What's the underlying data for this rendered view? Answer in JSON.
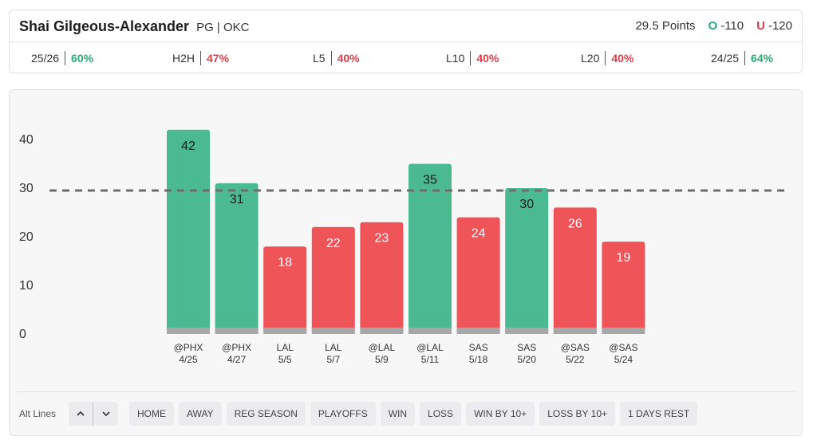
{
  "player": {
    "name": "Shai Gilgeous-Alexander",
    "meta": "PG | OKC"
  },
  "line": {
    "points": "29.5 Points",
    "over_letter": "O",
    "over_odds": "-110",
    "under_letter": "U",
    "under_odds": "-120"
  },
  "stats": [
    {
      "label": "25/26",
      "value": "60%",
      "status": "green"
    },
    {
      "label": "H2H",
      "value": "47%",
      "status": "red"
    },
    {
      "label": "L5",
      "value": "40%",
      "status": "red"
    },
    {
      "label": "L10",
      "value": "40%",
      "status": "red"
    },
    {
      "label": "L20",
      "value": "40%",
      "status": "red"
    },
    {
      "label": "24/25",
      "value": "64%",
      "status": "green"
    }
  ],
  "colors": {
    "over": "#4bba93",
    "under": "#ef5459",
    "base": "#a7a7a9",
    "dash": "#6e6e6e",
    "green_text": "#2aa876",
    "red_text": "#e23c4b"
  },
  "chart_data": {
    "type": "bar",
    "categories": [
      "@PHX 4/25",
      "@PHX 4/27",
      "LAL 5/5",
      "LAL 5/7",
      "@LAL 5/9",
      "@LAL 5/11",
      "SAS 5/18",
      "SAS 5/20",
      "@SAS 5/22",
      "@SAS 5/24"
    ],
    "opponents": [
      "@PHX",
      "@PHX",
      "LAL",
      "LAL",
      "@LAL",
      "@LAL",
      "SAS",
      "SAS",
      "@SAS",
      "@SAS"
    ],
    "dates": [
      "4/25",
      "4/27",
      "5/5",
      "5/7",
      "5/9",
      "5/11",
      "5/18",
      "5/20",
      "5/22",
      "5/24"
    ],
    "values": [
      42,
      31,
      18,
      22,
      23,
      35,
      24,
      30,
      26,
      19
    ],
    "line": 29.5,
    "yticks": [
      0,
      10,
      20,
      30,
      40
    ],
    "ylim": [
      0,
      43
    ],
    "grid": false
  },
  "footer": {
    "alt_lines_label": "Alt Lines",
    "up_icon": "chevron-up-icon",
    "down_icon": "chevron-down-icon",
    "filters": [
      "HOME",
      "AWAY",
      "REG SEASON",
      "PLAYOFFS",
      "WIN",
      "LOSS",
      "WIN BY 10+",
      "LOSS BY 10+",
      "1 DAYS REST"
    ]
  }
}
